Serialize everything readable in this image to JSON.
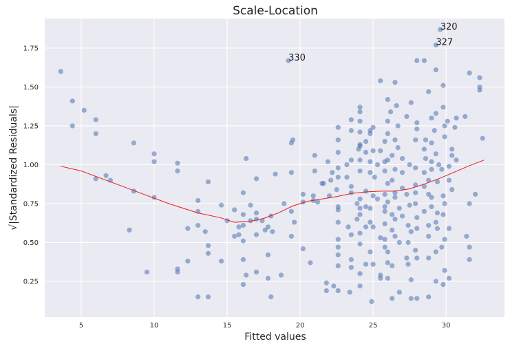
{
  "chart_data": {
    "type": "scatter",
    "title": "Scale-Location",
    "xlabel": "Fitted values",
    "ylabel": "√|Standardized Residuals|",
    "xlim": [
      2.5,
      34
    ],
    "ylim": [
      0.02,
      1.94
    ],
    "xticks": [
      5,
      10,
      15,
      20,
      25,
      30
    ],
    "yticks": [
      0.25,
      0.5,
      0.75,
      1.0,
      1.25,
      1.5,
      1.75
    ],
    "ytick_labels": [
      "0.25",
      "0.50",
      "0.75",
      "1.00",
      "1.25",
      "1.50",
      "1.75"
    ],
    "grid": true,
    "style": "seaborn-darkgrid",
    "colors": {
      "background": "#eaeaf2",
      "grid": "#ffffff",
      "points": "#4c72b0",
      "lowess": "#e41a1c",
      "text": "#262626"
    },
    "series": [
      {
        "kind": "scatter",
        "points": [
          [
            3.6,
            1.6
          ],
          [
            4.4,
            1.41
          ],
          [
            4.4,
            1.25
          ],
          [
            5.2,
            1.35
          ],
          [
            6.0,
            1.29
          ],
          [
            6.0,
            1.2
          ],
          [
            6.0,
            0.91
          ],
          [
            6.7,
            0.93
          ],
          [
            7.0,
            0.9
          ],
          [
            8.3,
            0.58
          ],
          [
            8.6,
            1.14
          ],
          [
            8.6,
            0.83
          ],
          [
            9.5,
            0.31
          ],
          [
            10.0,
            1.07
          ],
          [
            10.0,
            1.02
          ],
          [
            10.0,
            0.79
          ],
          [
            11.6,
            1.01
          ],
          [
            11.6,
            0.96
          ],
          [
            11.6,
            0.33
          ],
          [
            11.6,
            0.31
          ],
          [
            12.3,
            0.59
          ],
          [
            12.3,
            0.38
          ],
          [
            13.0,
            0.77
          ],
          [
            13.0,
            0.7
          ],
          [
            13.0,
            0.61
          ],
          [
            13.0,
            0.15
          ],
          [
            13.5,
            0.57
          ],
          [
            13.7,
            0.89
          ],
          [
            13.7,
            0.48
          ],
          [
            13.7,
            0.43
          ],
          [
            13.7,
            0.15
          ],
          [
            14.6,
            0.74
          ],
          [
            14.6,
            0.38
          ],
          [
            15.0,
            0.64
          ],
          [
            15.5,
            0.71
          ],
          [
            15.5,
            0.54
          ],
          [
            15.8,
            0.6
          ],
          [
            15.8,
            0.55
          ],
          [
            16.1,
            0.82
          ],
          [
            16.1,
            0.68
          ],
          [
            16.1,
            0.61
          ],
          [
            16.1,
            0.51
          ],
          [
            16.1,
            0.39
          ],
          [
            16.1,
            0.23
          ],
          [
            16.3,
            1.04
          ],
          [
            16.3,
            0.29
          ],
          [
            16.6,
            0.74
          ],
          [
            17.0,
            0.91
          ],
          [
            17.0,
            0.69
          ],
          [
            17.0,
            0.65
          ],
          [
            17.0,
            0.55
          ],
          [
            17.0,
            0.31
          ],
          [
            17.4,
            0.64
          ],
          [
            17.6,
            0.58
          ],
          [
            17.8,
            0.6
          ],
          [
            17.8,
            0.42
          ],
          [
            17.8,
            0.27
          ],
          [
            18.0,
            0.67
          ],
          [
            18.0,
            0.15
          ],
          [
            18.3,
            0.94
          ],
          [
            18.7,
            0.29
          ],
          [
            18.9,
            0.75
          ],
          [
            19.2,
            1.67
          ],
          [
            19.4,
            1.14
          ],
          [
            19.4,
            0.7
          ],
          [
            19.4,
            0.54
          ],
          [
            19.4,
            0.95
          ],
          [
            19.5,
            1.16
          ],
          [
            19.6,
            0.63
          ],
          [
            20.2,
            0.81
          ],
          [
            20.2,
            0.76
          ],
          [
            20.2,
            0.46
          ],
          [
            20.7,
            0.37
          ],
          [
            20.9,
            0.8
          ],
          [
            21.0,
            1.06
          ],
          [
            21.0,
            0.96
          ],
          [
            21.2,
            0.76
          ],
          [
            21.6,
            0.88
          ],
          [
            21.8,
            0.24
          ],
          [
            21.8,
            0.19
          ],
          [
            21.9,
            1.02
          ],
          [
            22.0,
            0.8
          ],
          [
            22.1,
            0.9
          ],
          [
            22.3,
            0.22
          ],
          [
            22.5,
            0.84
          ],
          [
            22.6,
            1.24
          ],
          [
            22.6,
            1.16
          ],
          [
            22.6,
            1.08
          ],
          [
            22.6,
            0.98
          ],
          [
            22.6,
            0.92
          ],
          [
            22.6,
            0.73
          ],
          [
            22.6,
            0.71
          ],
          [
            22.6,
            0.63
          ],
          [
            22.6,
            0.52
          ],
          [
            22.6,
            0.47
          ],
          [
            22.6,
            0.42
          ],
          [
            22.6,
            0.35
          ],
          [
            22.6,
            0.19
          ],
          [
            23.2,
            1.0
          ],
          [
            23.2,
            0.92
          ],
          [
            23.3,
            0.6
          ],
          [
            23.4,
            0.18
          ],
          [
            23.5,
            1.29
          ],
          [
            23.5,
            1.22
          ],
          [
            23.5,
            1.03
          ],
          [
            23.5,
            0.86
          ],
          [
            23.5,
            0.82
          ],
          [
            23.5,
            0.55
          ],
          [
            23.5,
            0.39
          ],
          [
            23.5,
            0.34
          ],
          [
            23.9,
            0.75
          ],
          [
            23.9,
            0.65
          ],
          [
            24.0,
            1.1
          ],
          [
            24.1,
            1.37
          ],
          [
            24.1,
            1.34
          ],
          [
            24.1,
            1.28
          ],
          [
            24.1,
            1.21
          ],
          [
            24.1,
            1.13
          ],
          [
            24.1,
            1.12
          ],
          [
            24.1,
            1.03
          ],
          [
            24.1,
            0.96
          ],
          [
            24.1,
            0.78
          ],
          [
            24.1,
            0.72
          ],
          [
            24.1,
            0.68
          ],
          [
            24.1,
            0.56
          ],
          [
            24.1,
            0.49
          ],
          [
            24.1,
            0.3
          ],
          [
            24.1,
            0.22
          ],
          [
            24.5,
            1.15
          ],
          [
            24.5,
            1.08
          ],
          [
            24.5,
            0.83
          ],
          [
            24.5,
            0.73
          ],
          [
            24.5,
            0.6
          ],
          [
            24.5,
            0.36
          ],
          [
            24.8,
            1.22
          ],
          [
            24.8,
            1.2
          ],
          [
            24.8,
            1.02
          ],
          [
            24.8,
            0.95
          ],
          [
            24.8,
            0.72
          ],
          [
            24.8,
            0.63
          ],
          [
            24.8,
            0.44
          ],
          [
            24.9,
            0.12
          ],
          [
            25.0,
            1.24
          ],
          [
            25.0,
            1.09
          ],
          [
            25.0,
            0.8
          ],
          [
            25.0,
            0.6
          ],
          [
            25.0,
            0.36
          ],
          [
            25.1,
            0.92
          ],
          [
            25.3,
            1.0
          ],
          [
            25.3,
            0.78
          ],
          [
            25.5,
            1.54
          ],
          [
            25.5,
            1.09
          ],
          [
            25.5,
            0.53
          ],
          [
            25.5,
            0.29
          ],
          [
            25.5,
            0.27
          ],
          [
            25.8,
            1.15
          ],
          [
            25.8,
            1.02
          ],
          [
            25.8,
            0.96
          ],
          [
            25.8,
            0.81
          ],
          [
            25.8,
            0.73
          ],
          [
            25.8,
            0.7
          ],
          [
            25.8,
            0.62
          ],
          [
            25.8,
            0.52
          ],
          [
            25.8,
            0.47
          ],
          [
            26.0,
            1.42
          ],
          [
            26.0,
            1.28
          ],
          [
            26.0,
            1.2
          ],
          [
            26.0,
            1.03
          ],
          [
            26.0,
            0.88
          ],
          [
            26.0,
            0.76
          ],
          [
            26.0,
            0.44
          ],
          [
            26.0,
            0.37
          ],
          [
            26.0,
            0.27
          ],
          [
            26.2,
            1.34
          ],
          [
            26.3,
            1.06
          ],
          [
            26.3,
            0.9
          ],
          [
            26.3,
            0.68
          ],
          [
            26.3,
            0.58
          ],
          [
            26.3,
            0.35
          ],
          [
            26.3,
            0.14
          ],
          [
            26.5,
            1.53
          ],
          [
            26.5,
            1.16
          ],
          [
            26.5,
            0.97
          ],
          [
            26.5,
            0.82
          ],
          [
            26.5,
            0.79
          ],
          [
            26.5,
            0.65
          ],
          [
            26.5,
            0.54
          ],
          [
            26.6,
            1.38
          ],
          [
            26.7,
            1.25
          ],
          [
            26.7,
            1.11
          ],
          [
            26.8,
            0.72
          ],
          [
            26.8,
            0.5
          ],
          [
            26.8,
            0.18
          ],
          [
            27.0,
            1.04
          ],
          [
            27.0,
            0.95
          ],
          [
            27.0,
            0.85
          ],
          [
            27.0,
            0.67
          ],
          [
            27.3,
            1.31
          ],
          [
            27.3,
            0.81
          ],
          [
            27.3,
            0.4
          ],
          [
            27.4,
            0.61
          ],
          [
            27.4,
            0.5
          ],
          [
            27.4,
            0.36
          ],
          [
            27.5,
            1.0
          ],
          [
            27.5,
            0.74
          ],
          [
            27.6,
            1.4
          ],
          [
            27.6,
            0.57
          ],
          [
            27.6,
            0.26
          ],
          [
            27.6,
            0.14
          ],
          [
            27.9,
            1.16
          ],
          [
            27.9,
            0.98
          ],
          [
            27.9,
            0.87
          ],
          [
            27.9,
            0.82
          ],
          [
            27.9,
            0.75
          ],
          [
            27.9,
            0.45
          ],
          [
            28.0,
            1.67
          ],
          [
            28.0,
            1.27
          ],
          [
            28.0,
            1.23
          ],
          [
            28.0,
            0.66
          ],
          [
            28.0,
            0.59
          ],
          [
            28.0,
            0.4
          ],
          [
            28.0,
            0.14
          ],
          [
            28.5,
            1.67
          ],
          [
            28.5,
            1.1
          ],
          [
            28.5,
            0.95
          ],
          [
            28.5,
            0.86
          ],
          [
            28.5,
            0.7
          ],
          [
            28.6,
            1.16
          ],
          [
            28.6,
            1.04
          ],
          [
            28.8,
            1.47
          ],
          [
            28.8,
            0.9
          ],
          [
            28.8,
            0.81
          ],
          [
            28.8,
            0.61
          ],
          [
            28.8,
            0.54
          ],
          [
            28.8,
            0.4
          ],
          [
            28.8,
            0.15
          ],
          [
            29.0,
            1.3
          ],
          [
            29.0,
            1.14
          ],
          [
            29.0,
            1.02
          ],
          [
            29.0,
            0.97
          ],
          [
            29.0,
            0.79
          ],
          [
            29.0,
            0.73
          ],
          [
            29.2,
            1.22
          ],
          [
            29.3,
            1.77
          ],
          [
            29.3,
            1.61
          ],
          [
            29.3,
            1.33
          ],
          [
            29.3,
            1.07
          ],
          [
            29.3,
            0.63
          ],
          [
            29.3,
            0.44
          ],
          [
            29.3,
            0.25
          ],
          [
            29.4,
            0.89
          ],
          [
            29.4,
            0.69
          ],
          [
            29.4,
            0.59
          ],
          [
            29.5,
            1.0
          ],
          [
            29.6,
            1.87
          ],
          [
            29.7,
            0.97
          ],
          [
            29.7,
            0.47
          ],
          [
            29.8,
            1.37
          ],
          [
            29.8,
            1.51
          ],
          [
            29.8,
            0.8
          ],
          [
            29.8,
            0.68
          ],
          [
            29.8,
            0.23
          ],
          [
            29.9,
            1.25
          ],
          [
            29.9,
            1.18
          ],
          [
            29.9,
            0.75
          ],
          [
            29.9,
            0.52
          ],
          [
            29.9,
            0.32
          ],
          [
            30.1,
            1.28
          ],
          [
            30.2,
            0.99
          ],
          [
            30.2,
            0.9
          ],
          [
            30.2,
            0.59
          ],
          [
            30.2,
            0.27
          ],
          [
            30.4,
            1.1
          ],
          [
            30.4,
            1.06
          ],
          [
            30.4,
            0.84
          ],
          [
            30.6,
            1.24
          ],
          [
            30.7,
            1.3
          ],
          [
            30.7,
            1.03
          ],
          [
            31.3,
            1.31
          ],
          [
            31.4,
            0.54
          ],
          [
            31.6,
            1.59
          ],
          [
            31.6,
            0.75
          ],
          [
            31.6,
            0.47
          ],
          [
            31.6,
            0.39
          ],
          [
            32.0,
            0.81
          ],
          [
            32.3,
            1.56
          ],
          [
            32.3,
            1.5
          ],
          [
            32.3,
            1.48
          ],
          [
            32.5,
            1.17
          ],
          [
            18.1,
            0.57
          ],
          [
            16.6,
            0.64
          ],
          [
            20.9,
            0.77
          ],
          [
            21.5,
            0.88
          ],
          [
            22.2,
            0.95
          ]
        ]
      },
      {
        "kind": "line",
        "x": [
          3.6,
          5,
          7,
          9,
          11,
          13,
          14.5,
          15.5,
          16.5,
          17.5,
          18.5,
          19.5,
          20.5,
          21.5,
          22.5,
          23.5,
          24.5,
          25.5,
          26.5,
          27.5,
          28.5,
          29.5,
          30.5,
          31.5,
          32.6
        ],
        "y": [
          0.99,
          0.96,
          0.89,
          0.82,
          0.75,
          0.69,
          0.66,
          0.63,
          0.635,
          0.655,
          0.69,
          0.735,
          0.765,
          0.78,
          0.795,
          0.815,
          0.825,
          0.83,
          0.83,
          0.845,
          0.875,
          0.91,
          0.95,
          0.99,
          1.03
        ]
      }
    ],
    "annotations": [
      {
        "text": "330",
        "x": 19.2,
        "y": 1.67
      },
      {
        "text": "320",
        "x": 29.6,
        "y": 1.87
      },
      {
        "text": "327",
        "x": 29.3,
        "y": 1.77
      }
    ]
  }
}
